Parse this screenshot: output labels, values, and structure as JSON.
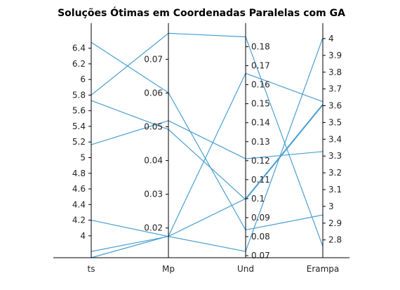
{
  "chart_data": {
    "type": "parallel_coordinates",
    "title": "Soluções Ótimas em Coordenadas Paralelas com GA",
    "axes": [
      {
        "name": "ts",
        "min": 3.72,
        "max": 6.72,
        "ticks": [
          4,
          4.2,
          4.4,
          4.6,
          4.8,
          5,
          5.2,
          5.4,
          5.6,
          5.8,
          6,
          6.2,
          6.4
        ],
        "tick_labels": [
          "4",
          "4.2",
          "4.4",
          "4.6",
          "4.8",
          "5",
          "5.2",
          "5.4",
          "5.6",
          "5.8",
          "6",
          "6.2",
          "6.4"
        ],
        "tick_side": "left"
      },
      {
        "name": "Mp",
        "min": 0.0112,
        "max": 0.0807,
        "ticks": [
          0.02,
          0.03,
          0.04,
          0.05,
          0.06,
          0.07
        ],
        "tick_labels": [
          "0.02",
          "0.03",
          "0.04",
          "0.05",
          "0.06",
          "0.07"
        ],
        "tick_side": "left"
      },
      {
        "name": "Und",
        "min": 0.0689,
        "max": 0.1924,
        "ticks": [
          0.07,
          0.08,
          0.09,
          0.1,
          0.11,
          0.12,
          0.13,
          0.14,
          0.15,
          0.16,
          0.17,
          0.18
        ],
        "tick_labels": [
          "0.07",
          "0.08",
          "0.09",
          "0.1",
          "0.11",
          "0.12",
          "0.13",
          "0.14",
          "0.15",
          "0.16",
          "0.17",
          "0.18"
        ],
        "tick_side": "right"
      },
      {
        "name": "Erampa",
        "min": 2.694,
        "max": 4.092,
        "ticks": [
          2.8,
          2.9,
          3,
          3.1,
          3.2,
          3.3,
          3.4,
          3.5,
          3.6,
          3.7,
          3.8,
          3.9,
          4
        ],
        "tick_labels": [
          "2.8",
          "2.9",
          "3",
          "3.1",
          "3.2",
          "3.3",
          "3.4",
          "3.5",
          "3.6",
          "3.7",
          "3.8",
          "3.9",
          "4"
        ],
        "tick_side": "right"
      }
    ],
    "lines": [
      [
        3.8,
        0.0175,
        0.0722,
        4.005
      ],
      [
        4.2,
        0.0175,
        0.1,
        3.61
      ],
      [
        5.165,
        0.0518,
        0.121,
        3.327
      ],
      [
        5.73,
        0.0492,
        0.0995,
        3.604
      ],
      [
        5.8,
        0.0777,
        0.1852,
        2.762
      ],
      [
        6.475,
        0.0601,
        0.0835,
        2.949
      ],
      [
        3.72,
        0.0176,
        0.166,
        3.624
      ]
    ],
    "line_color": "#4a9fd1"
  }
}
